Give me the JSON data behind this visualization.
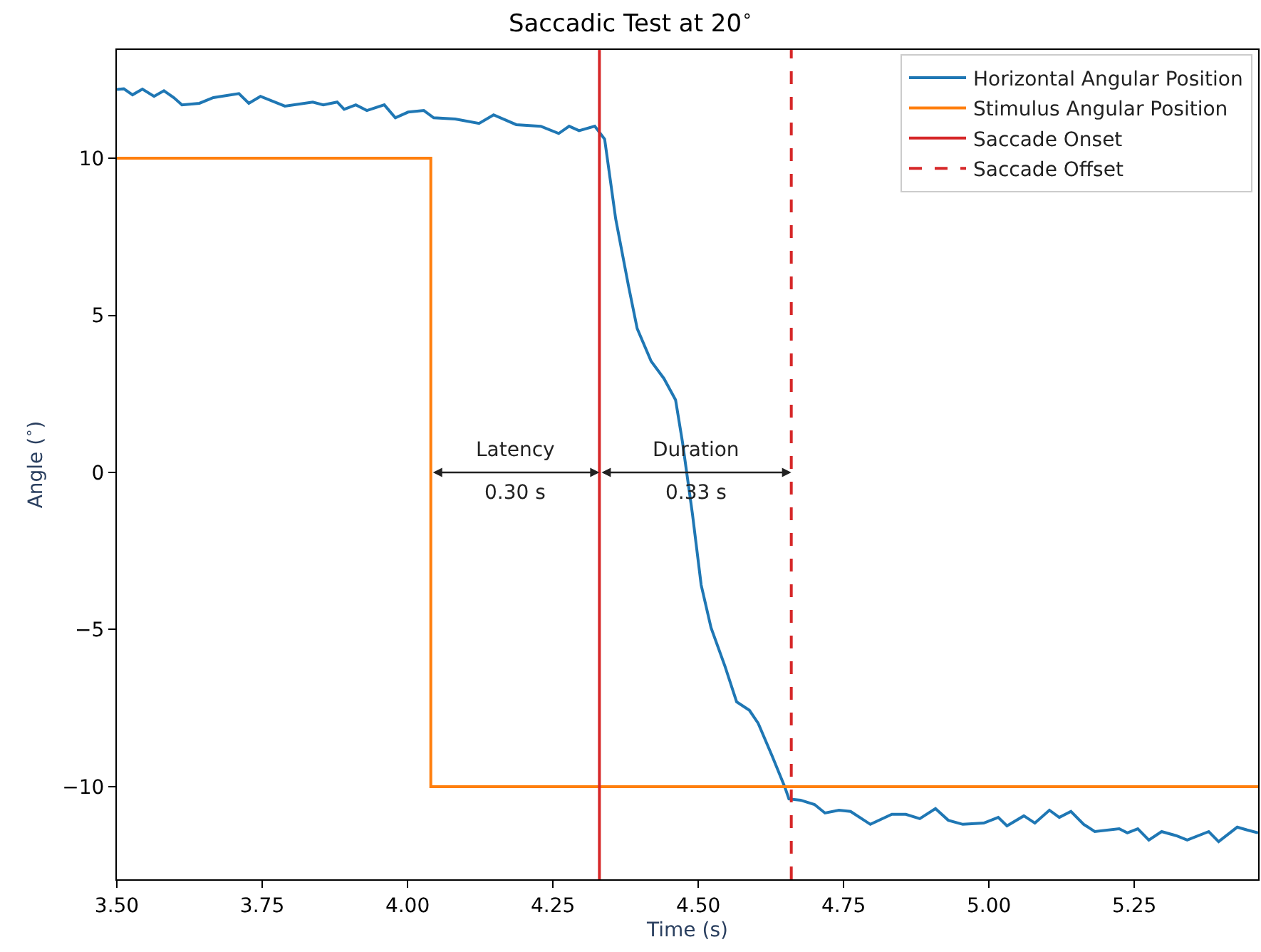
{
  "chart_data": {
    "type": "line",
    "title": "Saccadic Test at 20$^{∘}$",
    "xlabel": "Time (s)",
    "ylabel": "Angle ($^{∘}$)",
    "series": [
      {
        "name": "Horizontal Angular Position",
        "color": "#1f77b4",
        "x": [
          3.5,
          3.512,
          3.527,
          3.544,
          3.564,
          3.581,
          3.598,
          3.612,
          3.642,
          3.666,
          3.71,
          3.727,
          3.747,
          3.789,
          3.837,
          3.855,
          3.879,
          3.891,
          3.911,
          3.93,
          3.96,
          3.979,
          4.001,
          4.028,
          4.045,
          4.082,
          4.123,
          4.148,
          4.187,
          4.229,
          4.26,
          4.278,
          4.295,
          4.322,
          4.339,
          4.358,
          4.38,
          4.395,
          4.419,
          4.441,
          4.461,
          4.473,
          4.49,
          4.505,
          4.522,
          4.546,
          4.566,
          4.588,
          4.603,
          4.627,
          4.649,
          4.656,
          4.676,
          4.7,
          4.718,
          4.742,
          4.762,
          4.796,
          4.833,
          4.857,
          4.881,
          4.908,
          4.93,
          4.955,
          4.991,
          5.016,
          5.031,
          5.06,
          5.079,
          5.104,
          5.121,
          5.141,
          5.163,
          5.182,
          5.224,
          5.238,
          5.256,
          5.275,
          5.297,
          5.322,
          5.341,
          5.378,
          5.395,
          5.427,
          5.444,
          5.463
        ],
        "values": [
          12.19,
          12.21,
          12.02,
          12.2,
          11.97,
          12.15,
          11.93,
          11.7,
          11.75,
          11.93,
          12.06,
          11.75,
          11.97,
          11.66,
          11.79,
          11.7,
          11.79,
          11.56,
          11.7,
          11.52,
          11.7,
          11.29,
          11.47,
          11.52,
          11.29,
          11.25,
          11.11,
          11.38,
          11.07,
          11.02,
          10.79,
          11.02,
          10.88,
          11.02,
          10.61,
          8.07,
          5.94,
          4.58,
          3.54,
          2.99,
          2.31,
          0.95,
          -1.32,
          -3.58,
          -4.94,
          -6.17,
          -7.3,
          -7.57,
          -7.98,
          -9.02,
          -10.02,
          -10.39,
          -10.43,
          -10.57,
          -10.84,
          -10.75,
          -10.79,
          -11.2,
          -10.88,
          -10.88,
          -11.02,
          -10.7,
          -11.07,
          -11.2,
          -11.16,
          -10.98,
          -11.25,
          -10.93,
          -11.16,
          -10.75,
          -10.98,
          -10.79,
          -11.2,
          -11.43,
          -11.34,
          -11.47,
          -11.34,
          -11.7,
          -11.43,
          -11.56,
          -11.7,
          -11.43,
          -11.75,
          -11.29,
          -11.38,
          -11.47
        ]
      },
      {
        "name": "Stimulus Angular Position",
        "color": "#ff7f0e",
        "type": "step",
        "x": [
          3.5,
          4.04,
          5.463
        ],
        "values": [
          10,
          -10,
          -10
        ]
      },
      {
        "name": "Saccade Onset",
        "color": "#d62728",
        "x": [
          4.33,
          4.33
        ],
        "values": [
          -12.95,
          13.45
        ]
      },
      {
        "name": "Saccade Offset",
        "color": "#d62728",
        "line_style": "dashed",
        "x": [
          4.66,
          4.66
        ],
        "values": [
          -12.95,
          13.45
        ]
      }
    ],
    "annotations": [
      "Latency",
      "0.30 s",
      "Duration",
      "0.33 s"
    ],
    "xlim": [
      3.5,
      5.463
    ],
    "ylim": [
      -12.95,
      13.45
    ],
    "xticks": [
      {
        "value": 3.5,
        "label": "3.50"
      },
      {
        "value": 3.75,
        "label": "3.75"
      },
      {
        "value": 4.0,
        "label": "4.00"
      },
      {
        "value": 4.25,
        "label": "4.25"
      },
      {
        "value": 4.5,
        "label": "4.50"
      },
      {
        "value": 4.75,
        "label": "4.75"
      },
      {
        "value": 5.0,
        "label": "5.00"
      },
      {
        "value": 5.25,
        "label": "5.25"
      }
    ],
    "yticks": [
      {
        "value": -10,
        "label": "−10"
      },
      {
        "value": -5,
        "label": "−5"
      },
      0,
      5,
      10
    ],
    "legend": "top right",
    "marker": "none",
    "line_style": "solid"
  }
}
